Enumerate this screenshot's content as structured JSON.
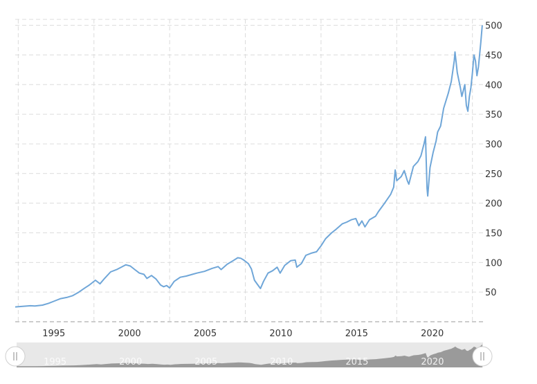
{
  "chart_data": {
    "type": "line",
    "title": "",
    "xlabel": "",
    "ylabel": "",
    "ylim": [
      0,
      510
    ],
    "xlim": [
      1993.0,
      2023.9
    ],
    "y_ticks": [
      "50",
      "100",
      "150",
      "200",
      "250",
      "300",
      "350",
      "400",
      "450",
      "500"
    ],
    "x_ticks": [
      "1995",
      "2000",
      "2005",
      "2010",
      "2015",
      "2020"
    ],
    "navigator_labels": [
      "1995",
      "2000",
      "2005",
      "2010",
      "2015",
      "2020"
    ],
    "grid": true,
    "legend": "none",
    "line_color": "#6fa6d8",
    "series": [
      {
        "points": [
          [
            1993.0,
            25
          ],
          [
            1993.5,
            26
          ],
          [
            1994.0,
            27
          ],
          [
            1994.3,
            26.5
          ],
          [
            1994.8,
            28
          ],
          [
            1995.2,
            31
          ],
          [
            1995.6,
            35
          ],
          [
            1996.0,
            39
          ],
          [
            1996.4,
            41
          ],
          [
            1996.8,
            44
          ],
          [
            1997.2,
            50
          ],
          [
            1997.6,
            57
          ],
          [
            1997.9,
            62
          ],
          [
            1998.3,
            70
          ],
          [
            1998.6,
            64
          ],
          [
            1998.9,
            73
          ],
          [
            1999.3,
            84
          ],
          [
            1999.7,
            88
          ],
          [
            2000.0,
            92
          ],
          [
            2000.3,
            96
          ],
          [
            2000.6,
            94
          ],
          [
            2000.9,
            88
          ],
          [
            2001.2,
            82
          ],
          [
            2001.5,
            80
          ],
          [
            2001.7,
            73
          ],
          [
            2002.0,
            78
          ],
          [
            2002.3,
            72
          ],
          [
            2002.6,
            62
          ],
          [
            2002.8,
            59
          ],
          [
            2003.0,
            61
          ],
          [
            2003.2,
            57
          ],
          [
            2003.5,
            68
          ],
          [
            2003.9,
            75
          ],
          [
            2004.3,
            77
          ],
          [
            2004.7,
            80
          ],
          [
            2005.0,
            82
          ],
          [
            2005.5,
            85
          ],
          [
            2006.0,
            90
          ],
          [
            2006.4,
            93
          ],
          [
            2006.6,
            88
          ],
          [
            2007.0,
            97
          ],
          [
            2007.4,
            103
          ],
          [
            2007.7,
            108
          ],
          [
            2007.9,
            107
          ],
          [
            2008.1,
            104
          ],
          [
            2008.4,
            98
          ],
          [
            2008.6,
            89
          ],
          [
            2008.8,
            70
          ],
          [
            2009.0,
            63
          ],
          [
            2009.2,
            56
          ],
          [
            2009.4,
            68
          ],
          [
            2009.7,
            82
          ],
          [
            2010.0,
            86
          ],
          [
            2010.3,
            92
          ],
          [
            2010.5,
            82
          ],
          [
            2010.8,
            95
          ],
          [
            2011.2,
            103
          ],
          [
            2011.5,
            104
          ],
          [
            2011.6,
            92
          ],
          [
            2011.9,
            98
          ],
          [
            2012.2,
            112
          ],
          [
            2012.6,
            116
          ],
          [
            2012.9,
            118
          ],
          [
            2013.2,
            128
          ],
          [
            2013.5,
            140
          ],
          [
            2013.9,
            150
          ],
          [
            2014.2,
            156
          ],
          [
            2014.6,
            165
          ],
          [
            2014.9,
            168
          ],
          [
            2015.2,
            172
          ],
          [
            2015.5,
            174
          ],
          [
            2015.7,
            162
          ],
          [
            2015.9,
            170
          ],
          [
            2016.1,
            160
          ],
          [
            2016.4,
            172
          ],
          [
            2016.8,
            178
          ],
          [
            2017.0,
            186
          ],
          [
            2017.4,
            200
          ],
          [
            2017.8,
            215
          ],
          [
            2018.0,
            227
          ],
          [
            2018.1,
            256
          ],
          [
            2018.2,
            238
          ],
          [
            2018.5,
            245
          ],
          [
            2018.7,
            255
          ],
          [
            2018.9,
            238
          ],
          [
            2019.0,
            232
          ],
          [
            2019.3,
            262
          ],
          [
            2019.6,
            270
          ],
          [
            2019.8,
            280
          ],
          [
            2020.0,
            300
          ],
          [
            2020.1,
            312
          ],
          [
            2020.2,
            225
          ],
          [
            2020.25,
            212
          ],
          [
            2020.4,
            260
          ],
          [
            2020.6,
            285
          ],
          [
            2020.8,
            305
          ],
          [
            2020.9,
            320
          ],
          [
            2021.1,
            330
          ],
          [
            2021.3,
            360
          ],
          [
            2021.6,
            385
          ],
          [
            2021.8,
            405
          ],
          [
            2022.0,
            440
          ],
          [
            2022.05,
            455
          ],
          [
            2022.2,
            420
          ],
          [
            2022.4,
            395
          ],
          [
            2022.5,
            380
          ],
          [
            2022.7,
            400
          ],
          [
            2022.8,
            365
          ],
          [
            2022.9,
            355
          ],
          [
            2023.0,
            380
          ],
          [
            2023.1,
            395
          ],
          [
            2023.2,
            420
          ],
          [
            2023.3,
            450
          ],
          [
            2023.4,
            440
          ],
          [
            2023.5,
            415
          ],
          [
            2023.6,
            430
          ],
          [
            2023.75,
            470
          ],
          [
            2023.85,
            500
          ]
        ]
      }
    ]
  }
}
